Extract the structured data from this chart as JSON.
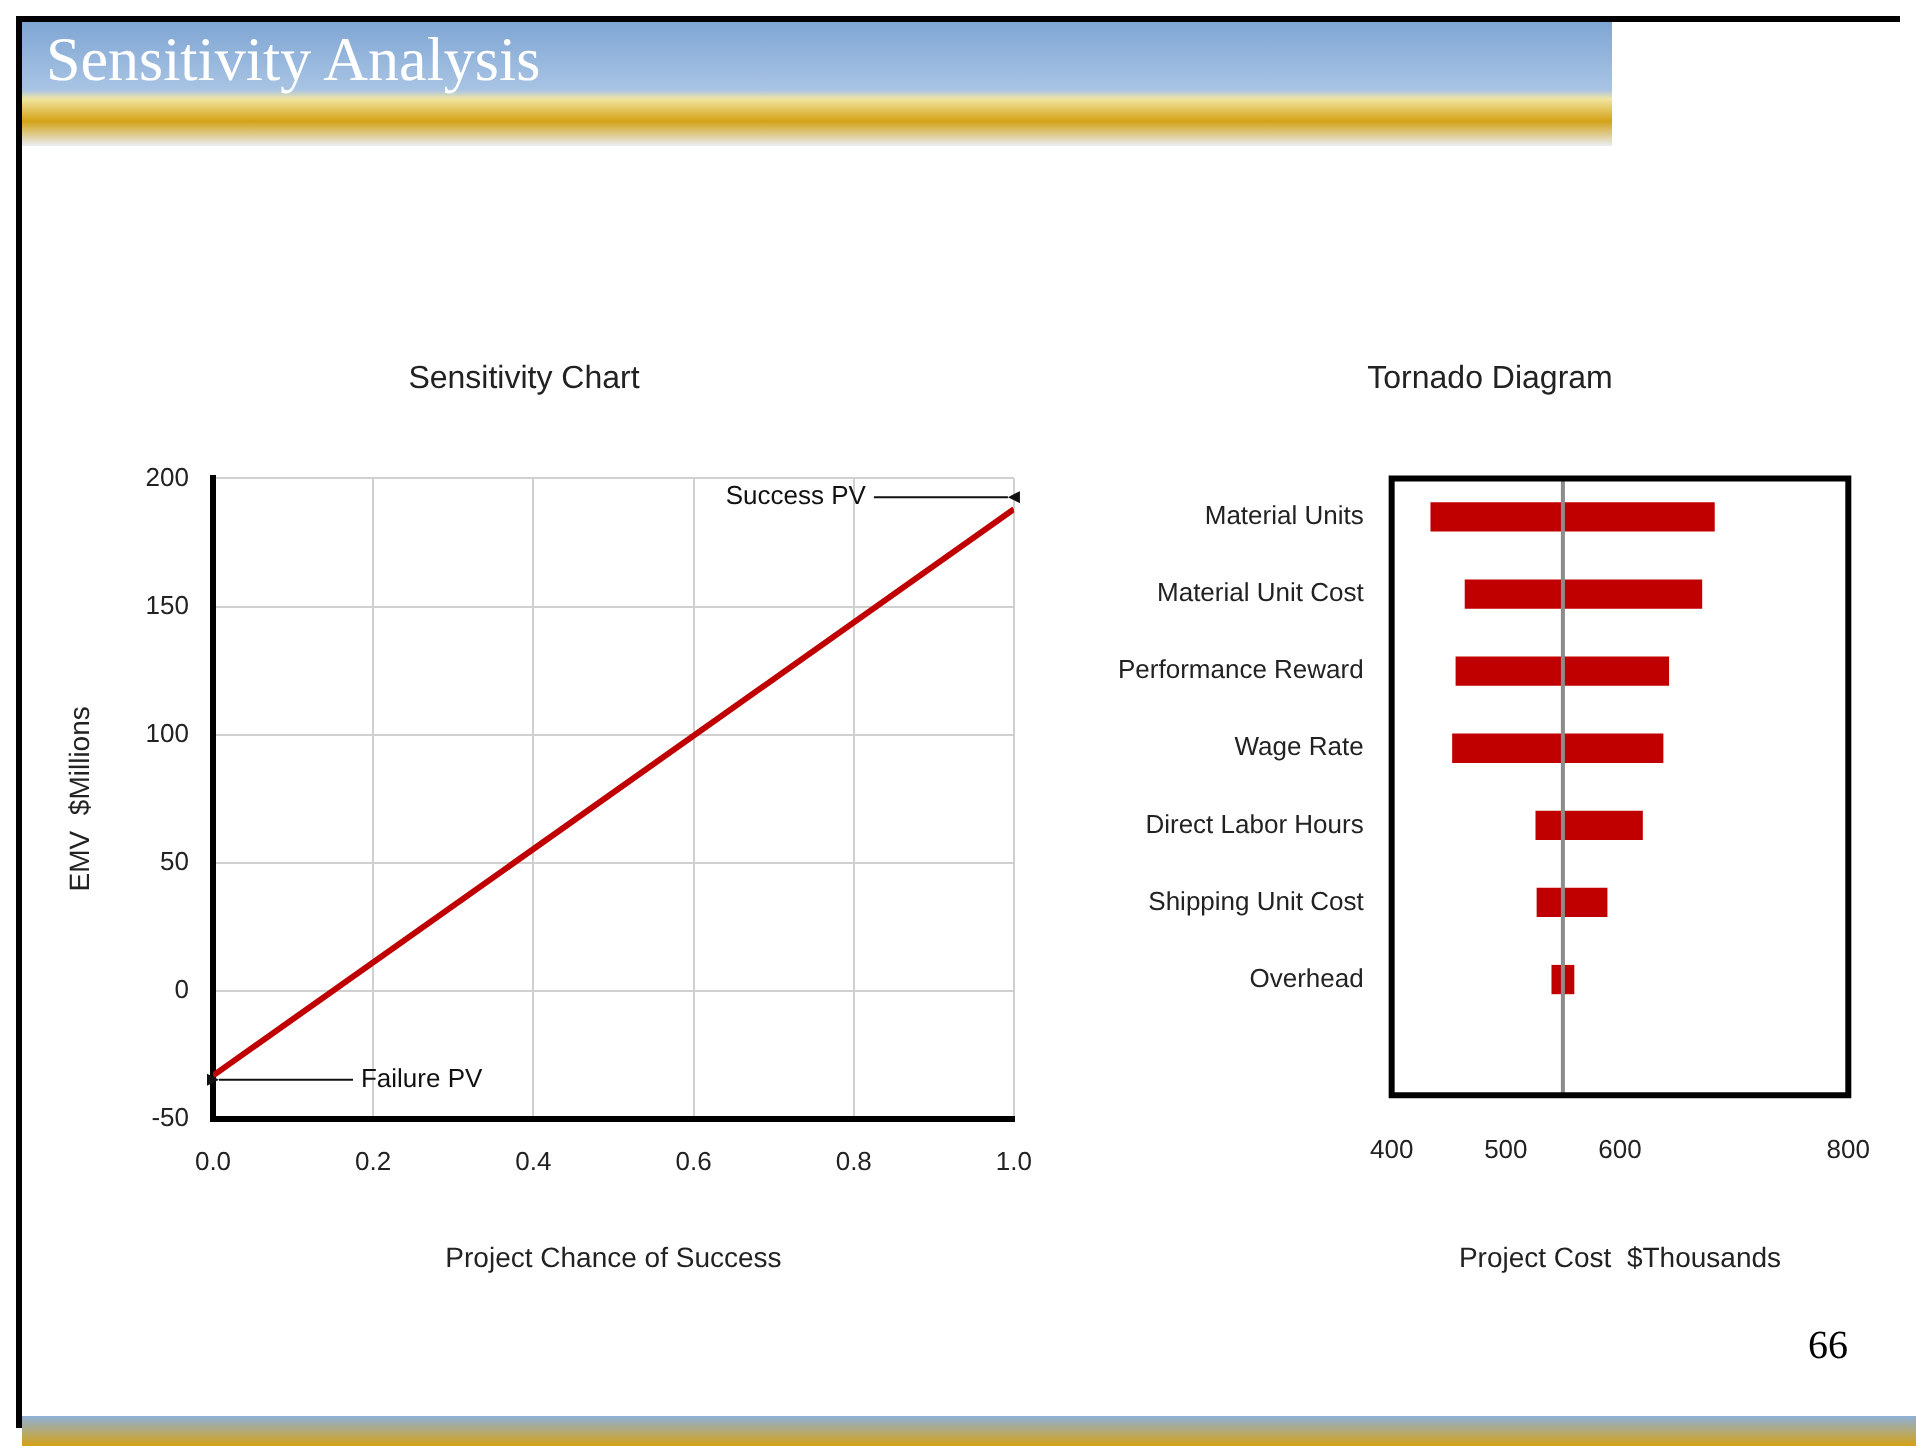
{
  "chart_data": [
    {
      "type": "line",
      "title": "Sensitivity Chart",
      "xlabel": "Project Chance of Success",
      "ylabel": "EMV  $Millions",
      "x": [
        0,
        1
      ],
      "series": [
        {
          "color": "#c00000",
          "values": [
            -33,
            188
          ]
        }
      ],
      "xlim": [
        0,
        1
      ],
      "xticks": [
        {
          "value": 0,
          "label": "0.0"
        },
        {
          "value": 0.2,
          "label": "0.2"
        },
        {
          "value": 0.4,
          "label": "0.4"
        },
        {
          "value": 0.6,
          "label": "0.6"
        },
        {
          "value": 0.8,
          "label": "0.8"
        },
        {
          "value": 1,
          "label": "1.0"
        }
      ],
      "ylim": [
        -50,
        200
      ],
      "yticks": [
        -50,
        0,
        50,
        100,
        150,
        200
      ],
      "grid": true,
      "legend": false,
      "marker": "none",
      "line_style": "solid",
      "annotations": [
        "Sensitivity Analysis",
        {
          "text": "Success PV",
          "x": 1,
          "y": 188
        },
        {
          "text": "Failure PV",
          "x": 0,
          "y": -33
        }
      ]
    },
    {
      "type": "bar",
      "orientation": "horizontal",
      "title": "Tornado Diagram",
      "xlabel": "Project Cost  $Thousands",
      "categories": [
        "Material Units",
        "Material Unit Cost",
        "Performance Reward",
        "Wage Rate",
        "Direct Labor Hours",
        "Shipping Unit Cost",
        "Overhead",
        null
      ],
      "base": [
        434,
        464,
        456,
        453,
        526,
        527,
        540,
        null
      ],
      "values": [
        249,
        208,
        187,
        185,
        94,
        62,
        20,
        null
      ],
      "color": "#c00000",
      "xlim": [
        400,
        800
      ],
      "xticks": [
        400,
        500,
        600,
        800
      ],
      "grid": false,
      "legend": false,
      "ref_lines": [
        {
          "axis": "x",
          "value": 550,
          "color": "#8c8c8c"
        }
      ],
      "annotations": [
        "66"
      ]
    }
  ]
}
